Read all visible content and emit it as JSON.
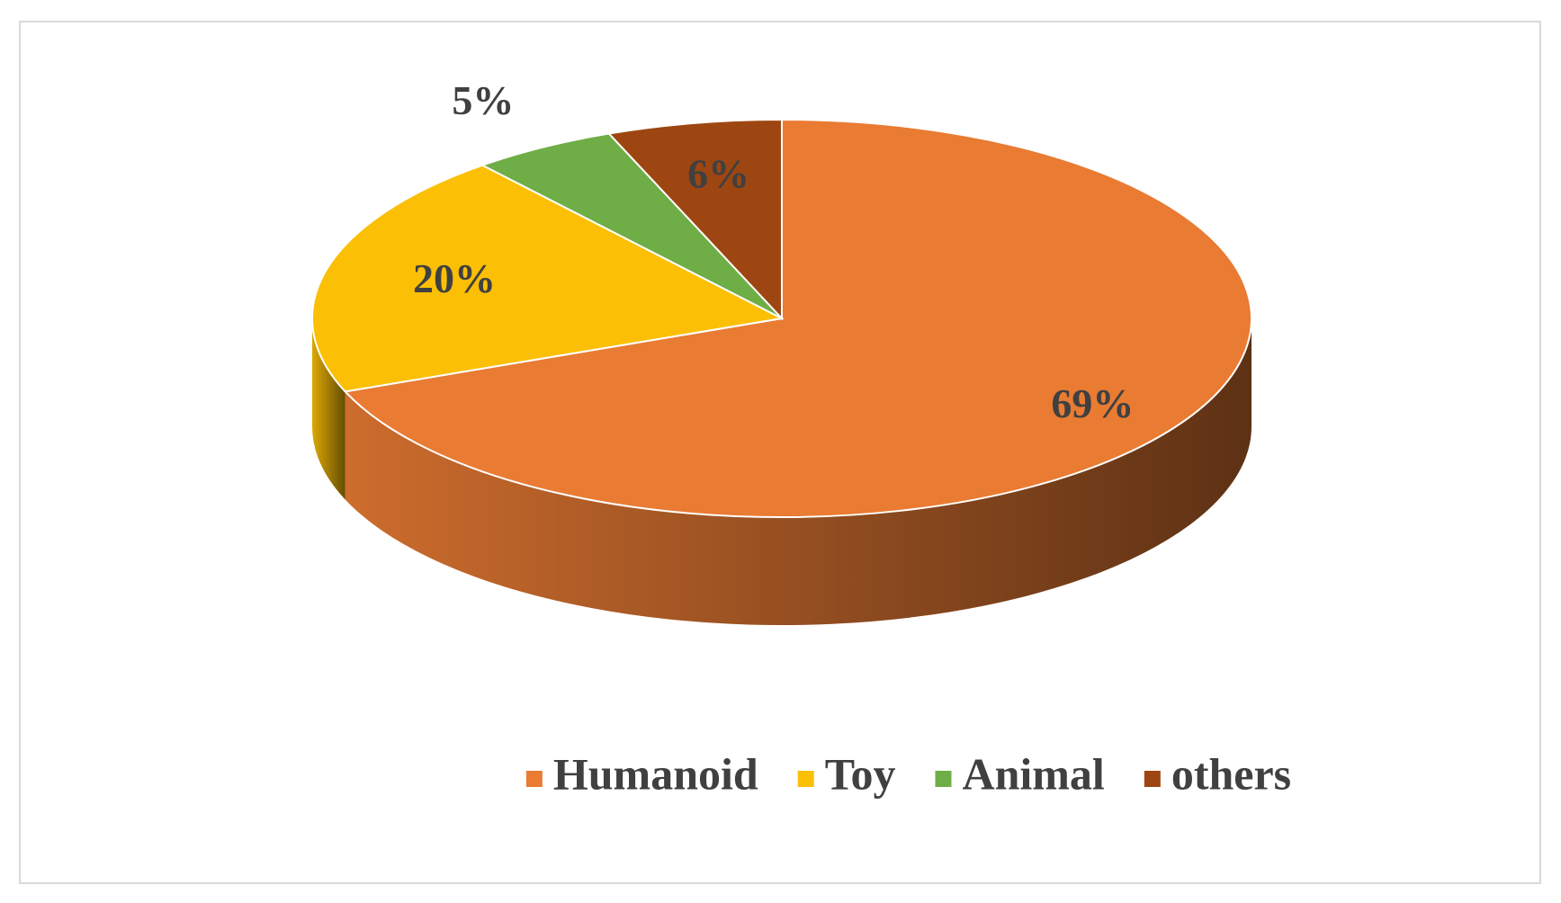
{
  "chart_data": {
    "type": "pie",
    "categories": [
      "Humanoid",
      "Toy",
      "Animal",
      "others"
    ],
    "values": [
      69,
      20,
      5,
      6
    ],
    "value_labels": [
      "69%",
      "20%",
      "5%",
      "6%"
    ],
    "colors": [
      "#E97B33",
      "#FBBF06",
      "#6FAD47",
      "#9E4611"
    ],
    "legend": "bottom"
  }
}
